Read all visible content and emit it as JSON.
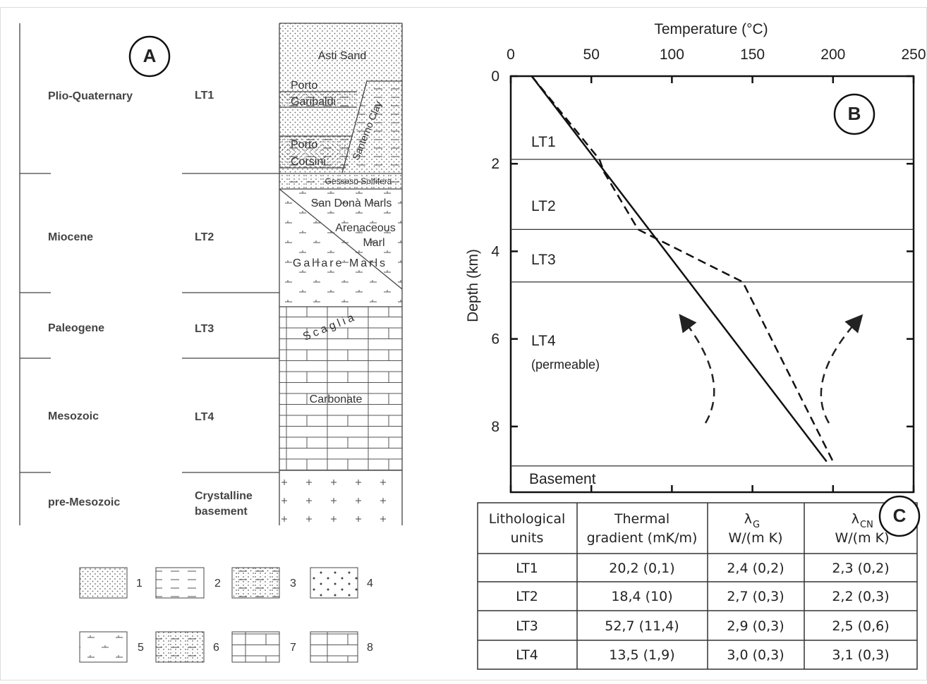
{
  "panel_a": {
    "panel_label": "A",
    "ages": [
      "Plio-Quaternary",
      "Miocene",
      "Paleogene",
      "Mesozoic",
      "pre-Mesozoic"
    ],
    "units": [
      "LT1",
      "LT2",
      "LT3",
      "LT4",
      "Crystalline",
      "basement"
    ],
    "formations": [
      "Asti Sand",
      "Porto",
      "Garibaldi",
      "Santerno Clay",
      "Porto",
      "Corsini",
      "Gessoso Solfifera",
      "San Donà Marls",
      "Arenaceous",
      "Marl",
      "Gallare Marls",
      "Scaglia",
      "Carbonate"
    ],
    "legend": [
      "1",
      "2",
      "3",
      "4",
      "5",
      "6",
      "7",
      "8"
    ]
  },
  "chart_data": {
    "type": "line",
    "panel_label": "B",
    "x_label": "Temperature (°C)",
    "y_label": "Depth (km)",
    "xlim": [
      0,
      250
    ],
    "xticks": [
      0,
      50,
      100,
      150,
      200,
      250
    ],
    "ylim": [
      0,
      9.5
    ],
    "yticks": [
      0,
      2,
      4,
      6,
      8
    ],
    "y_inverted": true,
    "x_axis_position": "top",
    "series": [
      {
        "color": "#111111",
        "linestyle": "solid",
        "x": [
          13,
          196
        ],
        "values": [
          0,
          8.8
        ]
      },
      {
        "color": "#111111",
        "linestyle": "dashed",
        "x": [
          13,
          55,
          58,
          79,
          144,
          200
        ],
        "values": [
          0,
          1.9,
          2.2,
          3.5,
          4.7,
          8.8
        ]
      }
    ],
    "boundaries": [
      1.9,
      3.5,
      4.7,
      8.9
    ],
    "annotations": [
      "LT1",
      "LT2",
      "LT3",
      "LT4",
      "(permeable)",
      "Basement"
    ]
  },
  "table": {
    "panel_label": "C",
    "header": [
      [
        "Lithological",
        "units"
      ],
      [
        "Thermal",
        "gradient (mK/m)"
      ],
      {
        "symbol": "λ",
        "sub": "G",
        "unit": "W/(m K)"
      },
      {
        "symbol": "λ",
        "sub": "CN",
        "unit": "W/(m K)"
      }
    ],
    "rows": [
      [
        "LT1",
        "20,2 (0,1)",
        "2,4 (0,2)",
        "2,3 (0,2)"
      ],
      [
        "LT2",
        "18,4 (10)",
        "2,7 (0,3)",
        "2,2 (0,3)"
      ],
      [
        "LT3",
        "52,7 (11,4)",
        "2,9 (0,3)",
        "2,5 (0,6)"
      ],
      [
        "LT4",
        "13,5 (1,9)",
        "3,0 (0,3)",
        "3,1 (0,3)"
      ]
    ]
  }
}
